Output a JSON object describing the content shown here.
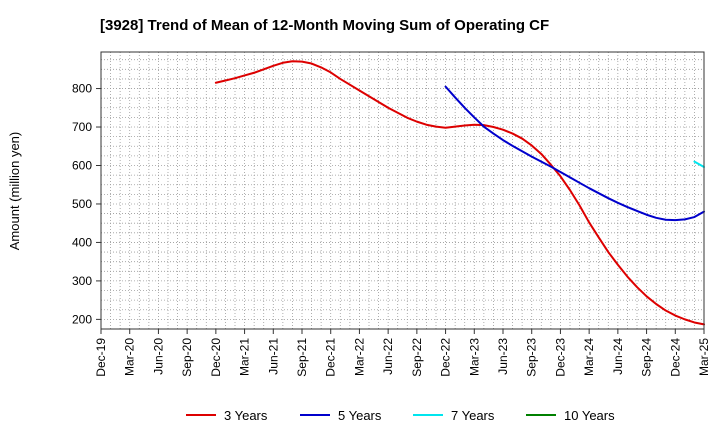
{
  "chart_data": {
    "type": "line",
    "title": "[3928]  Trend of Mean of 12-Month Moving Sum of Operating CF",
    "xlabel": "",
    "ylabel": "Amount (million yen)",
    "ylim": [
      175,
      895
    ],
    "yticks": [
      200,
      300,
      400,
      500,
      600,
      700,
      800
    ],
    "x_tick_labels": [
      "Dec-19",
      "Mar-20",
      "Jun-20",
      "Sep-20",
      "Dec-20",
      "Mar-21",
      "Jun-21",
      "Sep-21",
      "Dec-21",
      "Mar-22",
      "Jun-22",
      "Sep-22",
      "Dec-22",
      "Mar-23",
      "Jun-23",
      "Sep-23",
      "Dec-23",
      "Mar-24",
      "Jun-24",
      "Sep-24",
      "Dec-24",
      "Mar-25"
    ],
    "x_unit": "months since Dec-19",
    "xlim": [
      0,
      63
    ],
    "grid": true,
    "legend_position": "bottom",
    "series": [
      {
        "name": "3 Years",
        "color": "#dd0000",
        "points": [
          [
            12,
            815
          ],
          [
            13,
            821
          ],
          [
            14,
            827
          ],
          [
            15,
            834
          ],
          [
            16,
            841
          ],
          [
            17,
            850
          ],
          [
            18,
            859
          ],
          [
            19,
            867
          ],
          [
            20,
            871
          ],
          [
            21,
            870
          ],
          [
            22,
            865
          ],
          [
            23,
            855
          ],
          [
            24,
            842
          ],
          [
            25,
            825
          ],
          [
            26,
            810
          ],
          [
            27,
            795
          ],
          [
            28,
            780
          ],
          [
            29,
            765
          ],
          [
            30,
            750
          ],
          [
            31,
            737
          ],
          [
            32,
            724
          ],
          [
            33,
            714
          ],
          [
            34,
            706
          ],
          [
            35,
            701
          ],
          [
            36,
            698
          ],
          [
            37,
            701
          ],
          [
            38,
            704
          ],
          [
            39,
            706
          ],
          [
            40,
            705
          ],
          [
            41,
            700
          ],
          [
            42,
            693
          ],
          [
            43,
            683
          ],
          [
            44,
            670
          ],
          [
            45,
            652
          ],
          [
            46,
            630
          ],
          [
            47,
            602
          ],
          [
            48,
            572
          ],
          [
            49,
            536
          ],
          [
            50,
            496
          ],
          [
            51,
            452
          ],
          [
            52,
            413
          ],
          [
            53,
            375
          ],
          [
            54,
            342
          ],
          [
            55,
            311
          ],
          [
            56,
            284
          ],
          [
            57,
            260
          ],
          [
            58,
            240
          ],
          [
            59,
            223
          ],
          [
            60,
            210
          ],
          [
            61,
            200
          ],
          [
            62,
            192
          ],
          [
            63,
            187
          ]
        ]
      },
      {
        "name": "5 Years",
        "color": "#0000cc",
        "points": [
          [
            36,
            805
          ],
          [
            37,
            777
          ],
          [
            38,
            750
          ],
          [
            39,
            725
          ],
          [
            40,
            701
          ],
          [
            41,
            683
          ],
          [
            42,
            666
          ],
          [
            43,
            651
          ],
          [
            44,
            637
          ],
          [
            45,
            623
          ],
          [
            46,
            610
          ],
          [
            47,
            597
          ],
          [
            48,
            583
          ],
          [
            49,
            569
          ],
          [
            50,
            555
          ],
          [
            51,
            541
          ],
          [
            52,
            528
          ],
          [
            53,
            515
          ],
          [
            54,
            503
          ],
          [
            55,
            492
          ],
          [
            56,
            482
          ],
          [
            57,
            472
          ],
          [
            58,
            464
          ],
          [
            59,
            459
          ],
          [
            60,
            458
          ],
          [
            61,
            460
          ],
          [
            62,
            466
          ],
          [
            63,
            480
          ]
        ]
      },
      {
        "name": "7 Years",
        "color": "#00e5ee",
        "points": [
          [
            62,
            610
          ],
          [
            63,
            596
          ]
        ]
      },
      {
        "name": "10 Years",
        "color": "#008000",
        "points": []
      }
    ]
  }
}
